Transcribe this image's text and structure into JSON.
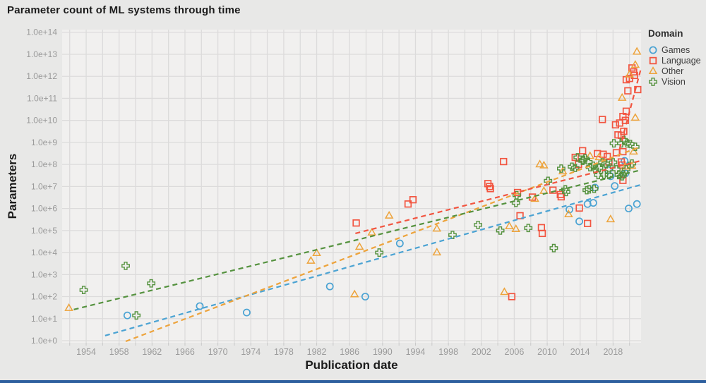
{
  "title": "Parameter count of ML systems through time",
  "x_axis": {
    "title": "Publication date",
    "ticks": [
      1954,
      1958,
      1962,
      1966,
      1970,
      1974,
      1978,
      1982,
      1986,
      1990,
      1994,
      1998,
      2002,
      2006,
      2010,
      2014,
      2018
    ]
  },
  "y_axis": {
    "title": "Parameters",
    "tick_labels": [
      "1.0e+0",
      "1.0e+1",
      "1.0e+2",
      "1.0e+3",
      "1.0e+4",
      "1.0e+5",
      "1.0e+6",
      "1.0e+7",
      "1.0e+8",
      "1.0e+9",
      "1.0e+10",
      "1.0e+11",
      "1.0e+12",
      "1.0e+13",
      "1.0e+14"
    ]
  },
  "legend": {
    "title": "Domain",
    "items": [
      {
        "label": "Games",
        "marker": "circle",
        "color": "#4ba3d3"
      },
      {
        "label": "Language",
        "marker": "square",
        "color": "#f25540"
      },
      {
        "label": "Other",
        "marker": "triangle",
        "color": "#eda33b"
      },
      {
        "label": "Vision",
        "marker": "cross",
        "color": "#55923f"
      }
    ]
  },
  "colors": {
    "page_bg": "#e8e8e7",
    "panel_bg": "#f1f0ef",
    "grid": "#dcdbdb",
    "tick_text": "#9a9a9a",
    "title_text": "#1b1b1b",
    "games": "#4ba3d3",
    "language": "#f25540",
    "other": "#eda33b",
    "vision": "#55923f"
  },
  "chart_data": {
    "type": "scatter",
    "title": "Parameter count of ML systems through time",
    "xlabel": "Publication date",
    "ylabel": "Parameters",
    "y_scale": "log",
    "x_range": [
      1951.08,
      2021.4
    ],
    "y_log_range": [
      -0.096,
      14.12
    ],
    "grid": true,
    "legend_position": "top-right",
    "series": [
      {
        "name": "Games",
        "marker": "circle",
        "color": "#4ba3d3",
        "points": [
          [
            1959.0,
            14
          ],
          [
            1967.8,
            37
          ],
          [
            1973.5,
            19
          ],
          [
            1983.6,
            290
          ],
          [
            1987.9,
            100
          ],
          [
            1992.1,
            26000.0
          ],
          [
            2012.7,
            900000.0
          ],
          [
            2013.9,
            260000.0
          ],
          [
            2014.9,
            1600000.0
          ],
          [
            2015.6,
            1800000.0
          ],
          [
            2015.8,
            8900000.0
          ],
          [
            2017.4,
            55000000.0
          ],
          [
            2017.7,
            29000000.0
          ],
          [
            2018.2,
            10500000.0
          ],
          [
            2019.4,
            145000000.0
          ],
          [
            2019.5,
            39000000.0
          ],
          [
            2019.9,
            1000000.0
          ],
          [
            2020.9,
            1600000.0
          ]
        ]
      },
      {
        "name": "Language",
        "marker": "square",
        "color": "#f25540",
        "points": [
          [
            1986.8,
            220000.0
          ],
          [
            1993.1,
            1600000.0
          ],
          [
            1993.7,
            2500000.0
          ],
          [
            2002.8,
            13500000.0
          ],
          [
            2003.0,
            10000000.0
          ],
          [
            2003.1,
            8000000.0
          ],
          [
            2004.7,
            135000000.0
          ],
          [
            2005.7,
            100.0
          ],
          [
            2006.4,
            5300000.0
          ],
          [
            2006.7,
            470000.0
          ],
          [
            2008.2,
            3300000.0
          ],
          [
            2009.3,
            135000.0
          ],
          [
            2009.4,
            74000.0
          ],
          [
            2010.7,
            6800000.0
          ],
          [
            2011.6,
            4300000.0
          ],
          [
            2011.7,
            3400000.0
          ],
          [
            2013.4,
            210000000.0
          ],
          [
            2013.8,
            100000000.0
          ],
          [
            2013.9,
            1050000.0
          ],
          [
            2014.3,
            420000000.0
          ],
          [
            2014.9,
            210000.0
          ],
          [
            2016.1,
            310000000.0
          ],
          [
            2016.7,
            11000000000.0
          ],
          [
            2016.8,
            290000000.0
          ],
          [
            2017.3,
            230000000.0
          ],
          [
            2017.5,
            130000000.0
          ],
          [
            2018.4,
            340000000.0
          ],
          [
            2018.3,
            6300000000.0
          ],
          [
            2018.6,
            2200000000.0
          ],
          [
            2018.8,
            7600000000.0
          ],
          [
            2019.0,
            2100000000.0
          ],
          [
            2019.0,
            130000000.0
          ],
          [
            2019.1,
            94000000.0
          ],
          [
            2019.2,
            19000000.0
          ],
          [
            2019.2,
            380000000.0
          ],
          [
            2019.3,
            3200000000.0
          ],
          [
            2019.2,
            15000000000.0
          ],
          [
            2019.5,
            10000000000.0
          ],
          [
            2019.6,
            26000000000.0
          ],
          [
            2019.8,
            220000000000.0
          ],
          [
            2019.6,
            700000000000.0
          ],
          [
            2020.0,
            800000000000.0
          ],
          [
            2020.3,
            2400000000000.0
          ],
          [
            2020.5,
            1600000000000.0
          ],
          [
            2020.6,
            1100000000000.0
          ],
          [
            2021.0,
            250000000000.0
          ]
        ]
      },
      {
        "name": "Other",
        "marker": "triangle",
        "color": "#eda33b",
        "points": [
          [
            1951.9,
            30
          ],
          [
            1981.3,
            4200.0
          ],
          [
            1982.0,
            9400.0
          ],
          [
            1986.6,
            125
          ],
          [
            1987.2,
            18000.0
          ],
          [
            1988.7,
            80000.0
          ],
          [
            1990.8,
            470000.0
          ],
          [
            1996.6,
            120000.0
          ],
          [
            1996.6,
            10000.0
          ],
          [
            2004.8,
            160
          ],
          [
            2005.4,
            155000.0
          ],
          [
            2006.2,
            115000.0
          ],
          [
            2008.5,
            2700000.0
          ],
          [
            2009.1,
            100000000.0
          ],
          [
            2009.6,
            89000000.0
          ],
          [
            2009.6,
            6200000.0
          ],
          [
            2011.9,
            48000000.0
          ],
          [
            2012.6,
            540000.0
          ],
          [
            2015.2,
            240000000.0
          ],
          [
            2016.3,
            210000000.0
          ],
          [
            2017.7,
            320000.0
          ],
          [
            2019.1,
            105000000000.0
          ],
          [
            2019.5,
            79000000.0
          ],
          [
            2020.0,
            1200000000000.0
          ],
          [
            2020.3,
            85000000.0
          ],
          [
            2020.5,
            380000000.0
          ],
          [
            2020.7,
            13000000000.0
          ],
          [
            2020.7,
            3300000000000.0
          ],
          [
            2020.9,
            13000000000000.0
          ]
        ]
      },
      {
        "name": "Vision",
        "marker": "cross",
        "color": "#55923f",
        "points": [
          [
            1953.7,
            200.0
          ],
          [
            1958.8,
            2500.0
          ],
          [
            1960.1,
            14
          ],
          [
            1961.9,
            400.0
          ],
          [
            1989.6,
            10000.0
          ],
          [
            1998.5,
            63000.0
          ],
          [
            2001.6,
            180000.0
          ],
          [
            2004.3,
            100000.0
          ],
          [
            2006.2,
            1800000.0
          ],
          [
            2006.3,
            4000000.0
          ],
          [
            2007.7,
            130000.0
          ],
          [
            2010.1,
            18000000.0
          ],
          [
            2010.8,
            16000.0
          ],
          [
            2011.7,
            65000000.0
          ],
          [
            2012.2,
            7400000.0
          ],
          [
            2012.3,
            5600000.0
          ],
          [
            2013.0,
            79000000.0
          ],
          [
            2013.4,
            70000000.0
          ],
          [
            2013.7,
            210000000.0
          ],
          [
            2014.3,
            145000000.0
          ],
          [
            2014.4,
            165000000.0
          ],
          [
            2014.6,
            190000000.0
          ],
          [
            2014.8,
            6800000.0
          ],
          [
            2015.0,
            130000000.0
          ],
          [
            2015.1,
            7400000.0
          ],
          [
            2015.2,
            75000000.0
          ],
          [
            2015.6,
            87000000.0
          ],
          [
            2015.7,
            7800000.0
          ],
          [
            2015.8,
            60000000.0
          ],
          [
            2016.2,
            33000000.0
          ],
          [
            2016.3,
            69000000.0
          ],
          [
            2016.7,
            125000000.0
          ],
          [
            2016.9,
            35000000.0
          ],
          [
            2017.1,
            110000000.0
          ],
          [
            2017.5,
            60000000.0
          ],
          [
            2017.5,
            33000000.0
          ],
          [
            2018.0,
            125000000.0
          ],
          [
            2018.1,
            910000000.0
          ],
          [
            2018.4,
            60000000.0
          ],
          [
            2018.7,
            33000000.0
          ],
          [
            2019.0,
            910000000.0
          ],
          [
            2019.1,
            29000000.0
          ],
          [
            2019.2,
            35000000.0
          ],
          [
            2019.3,
            1300000000.0
          ],
          [
            2019.6,
            60000000.0
          ],
          [
            2019.7,
            910000000.0
          ],
          [
            2020.1,
            850000000.0
          ],
          [
            2020.3,
            110000000.0
          ],
          [
            2020.7,
            630000000.0
          ]
        ]
      }
    ],
    "trend_lines": [
      {
        "series": "Games",
        "color": "#4ba3d3",
        "from": [
          1956.3,
          1.7
        ],
        "to": [
          2021.3,
          11800000.0
        ]
      },
      {
        "series": "Other",
        "color": "#eda33b",
        "from": [
          1958.8,
          0.93
        ],
        "to": [
          2021.3,
          630000000.0
        ]
      },
      {
        "series": "Vision",
        "color": "#55923f",
        "from": [
          1952.5,
          26
        ],
        "to": [
          2021.3,
          55000000.0
        ]
      },
      {
        "series": "Language",
        "color": "#f25540",
        "from": [
          1986.7,
          74000.0
        ],
        "to": [
          2021.3,
          145000000.0
        ]
      },
      {
        "series": "Language",
        "color": "#f25540",
        "from": [
          2018.8,
          510000000.0
        ],
        "to": [
          2021.4,
          2300000000000.0
        ]
      }
    ]
  }
}
